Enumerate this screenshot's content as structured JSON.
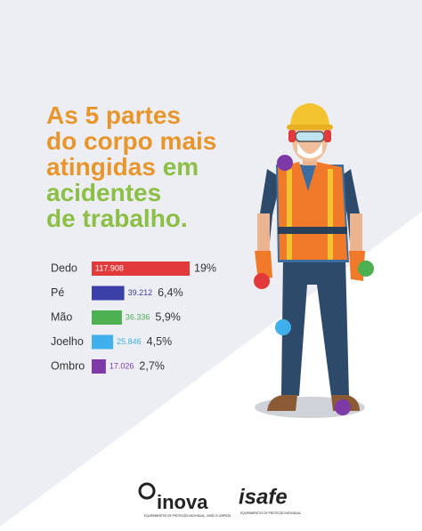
{
  "chart_data": {
    "type": "bar",
    "orientation": "horizontal",
    "title_lines": [
      [
        {
          "text": "As 5 partes",
          "color": "#e8962c"
        }
      ],
      [
        {
          "text": "do corpo mais",
          "color": "#e8962c"
        }
      ],
      [
        {
          "text": "atingidas",
          "color": "#e8962c"
        },
        {
          "text": " em",
          "color": "#8cbf45"
        }
      ],
      [
        {
          "text": "acidentes",
          "color": "#8cbf45"
        }
      ],
      [
        {
          "text": "de trabalho.",
          "color": "#8cbf45"
        }
      ]
    ],
    "categories": [
      "Dedo",
      "Pé",
      "Mão",
      "Joelho",
      "Ombro"
    ],
    "values": [
      117908,
      39212,
      36336,
      25846,
      17026
    ],
    "value_labels": [
      "117.908",
      "39.212",
      "36.336",
      "25.846",
      "17.026"
    ],
    "colors": [
      "#e23a3a",
      "#3b3fa8",
      "#4caf50",
      "#3fb0ec",
      "#7d3aa6"
    ],
    "percentages": [
      19,
      6.4,
      5.9,
      4.5,
      2.7
    ],
    "percentage_labels": [
      "19%",
      "6,4%",
      "5,9%",
      "4,5%",
      "2,7%"
    ]
  },
  "logos": [
    {
      "name": "inova",
      "tagline": "EQUIPAMENTOS DE PROTEÇÃO INDIVIDUAL, VISÃO E LIMPEZA"
    },
    {
      "name": "isafe",
      "tagline": "EQUIPAMENTOS DE PROTEÇÃO INDIVIDUAL"
    }
  ]
}
